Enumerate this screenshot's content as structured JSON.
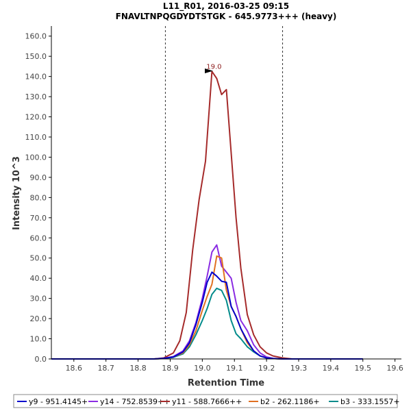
{
  "chart_data": {
    "type": "line",
    "title": "L11_R01, 2016-03-25 09:15",
    "subtitle": "FNAVLTNPQGDYDTSTGK - 645.9773+++ (heavy)",
    "xlabel": "Retention Time",
    "ylabel": "Intensity 10^3",
    "xlim": [
      18.53,
      19.62
    ],
    "ylim": [
      0,
      165
    ],
    "xticks": [
      "18.6",
      "18.7",
      "18.8",
      "18.9",
      "19.0",
      "19.1",
      "19.2",
      "19.3",
      "19.4",
      "19.5",
      "19.6"
    ],
    "yticks": [
      "0.0",
      "10.0",
      "20.0",
      "30.0",
      "40.0",
      "50.0",
      "60.0",
      "70.0",
      "80.0",
      "90.0",
      "100.0",
      "110.0",
      "120.0",
      "130.0",
      "140.0",
      "150.0",
      "160.0"
    ],
    "grid": false,
    "legend_position": "bottom",
    "boundaries": [
      18.885,
      19.25
    ],
    "peak_annotation": {
      "label": "19.0",
      "x": 19.03,
      "y": 142.5
    },
    "series": [
      {
        "name": "y9 - 951.4145+",
        "color": "#0000cc",
        "x": [
          18.53,
          18.85,
          18.88,
          18.91,
          18.94,
          18.96,
          18.98,
          19.0,
          19.015,
          19.03,
          19.045,
          19.06,
          19.075,
          19.09,
          19.105,
          19.12,
          19.14,
          19.16,
          19.18,
          19.2,
          19.22,
          19.25,
          19.28,
          19.5
        ],
        "values": [
          0,
          0,
          0.3,
          1.0,
          3.5,
          8,
          17,
          28,
          38,
          43,
          41,
          38.5,
          38,
          26,
          21,
          15,
          9,
          4,
          1.5,
          0.5,
          0.2,
          0,
          0,
          0
        ]
      },
      {
        "name": "y14 - 752.8539++",
        "color": "#8a2be2",
        "x": [
          18.53,
          18.85,
          18.88,
          18.91,
          18.94,
          18.96,
          18.98,
          19.0,
          19.015,
          19.03,
          19.045,
          19.06,
          19.075,
          19.09,
          19.105,
          19.12,
          19.14,
          19.16,
          19.18,
          19.2,
          19.22,
          19.25,
          19.28,
          19.5
        ],
        "values": [
          0,
          0,
          0.3,
          1.2,
          4,
          9,
          18,
          30,
          41,
          53,
          56.5,
          46,
          43,
          40,
          28,
          19,
          14,
          7,
          3,
          1,
          0.3,
          0,
          0,
          0
        ]
      },
      {
        "name": "y11 - 588.7666++",
        "color": "#a52a2a",
        "x": [
          18.53,
          18.85,
          18.88,
          18.91,
          18.93,
          18.95,
          18.97,
          18.99,
          19.01,
          19.03,
          19.045,
          19.06,
          19.075,
          19.09,
          19.105,
          19.12,
          19.14,
          19.16,
          19.18,
          19.2,
          19.22,
          19.25,
          19.28,
          19.5
        ],
        "values": [
          0,
          0,
          0.5,
          3,
          9,
          23,
          54,
          79,
          98,
          142.5,
          139,
          131,
          133.5,
          102,
          70,
          45,
          22,
          12,
          6,
          3,
          1.5,
          0.5,
          0,
          0
        ]
      },
      {
        "name": "b2 - 262.1186+",
        "color": "#e07020",
        "x": [
          18.53,
          18.85,
          18.88,
          18.91,
          18.94,
          18.96,
          18.98,
          19.0,
          19.015,
          19.03,
          19.045,
          19.06,
          19.075,
          19.09,
          19.105,
          19.12,
          19.14,
          19.16,
          19.18,
          19.2,
          19.22,
          19.25,
          19.28,
          19.5
        ],
        "values": [
          0,
          0,
          0.3,
          1.0,
          3,
          7,
          14,
          24,
          31,
          37,
          51,
          50,
          34,
          26,
          21,
          15,
          8,
          4,
          1.5,
          0.5,
          0.2,
          0,
          0,
          0
        ]
      },
      {
        "name": "b3 - 333.1557+",
        "color": "#008b8b",
        "x": [
          18.53,
          18.85,
          18.88,
          18.91,
          18.94,
          18.96,
          18.98,
          19.0,
          19.015,
          19.03,
          19.045,
          19.06,
          19.075,
          19.09,
          19.105,
          19.12,
          19.14,
          19.16,
          19.18,
          19.2,
          19.22,
          19.25,
          19.28,
          19.5
        ],
        "values": [
          0,
          0,
          0.2,
          0.8,
          2.5,
          6,
          12,
          19,
          25,
          32,
          35,
          34,
          29,
          19,
          12.5,
          10,
          6,
          3.5,
          1.5,
          0.5,
          0.2,
          0,
          0,
          0
        ]
      }
    ]
  }
}
